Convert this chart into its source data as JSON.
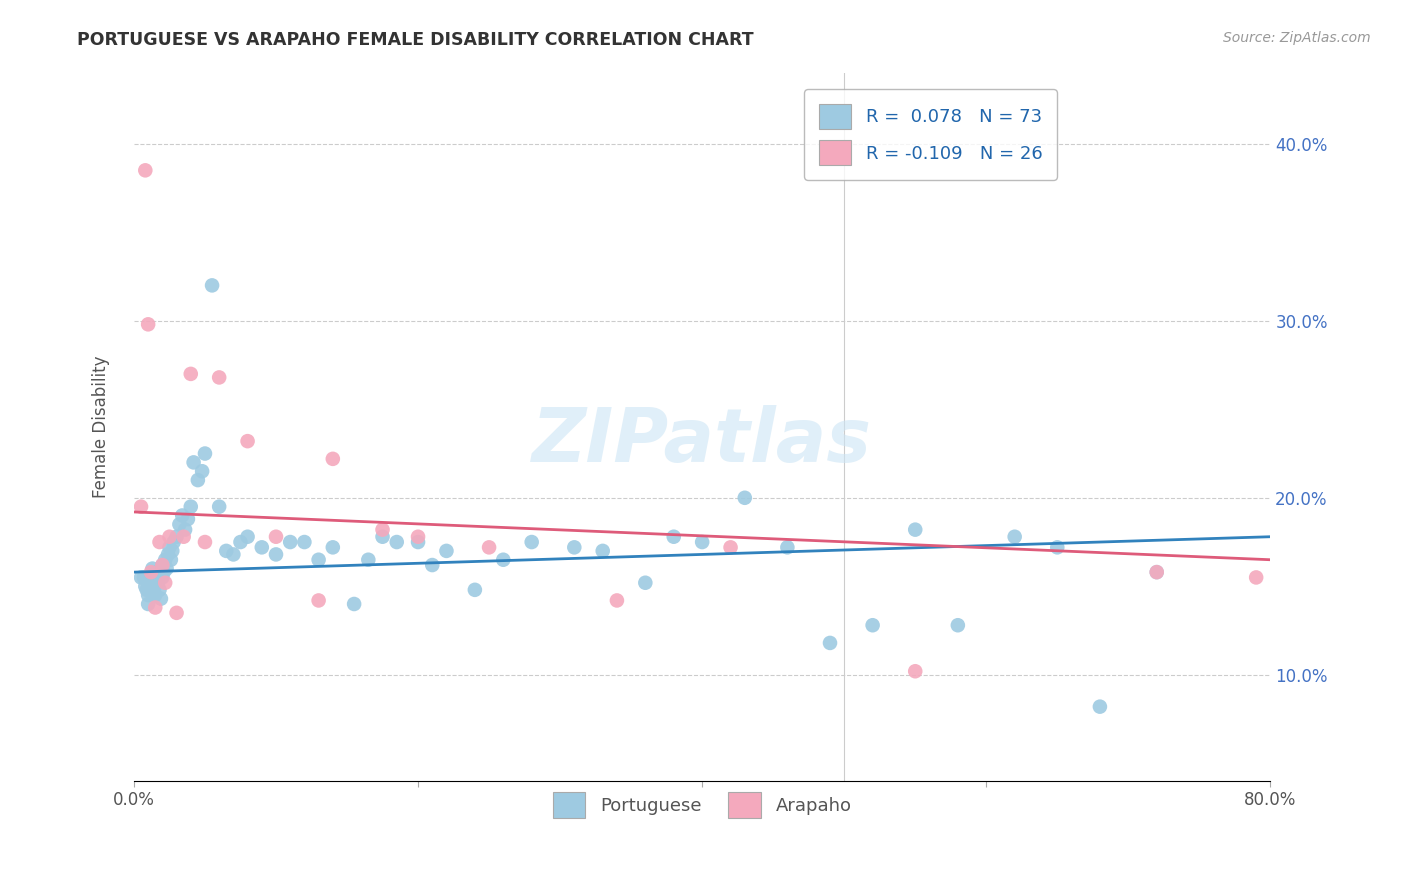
{
  "title": "PORTUGUESE VS ARAPAHO FEMALE DISABILITY CORRELATION CHART",
  "source": "Source: ZipAtlas.com",
  "xlabel": "",
  "ylabel": "Female Disability",
  "xlim": [
    0.0,
    0.8
  ],
  "ylim": [
    0.04,
    0.44
  ],
  "xtick_labels": [
    "0.0%",
    "",
    "",
    "",
    "80.0%"
  ],
  "xtick_vals": [
    0.0,
    0.2,
    0.4,
    0.6,
    0.8
  ],
  "ytick_labels": [
    "10.0%",
    "20.0%",
    "30.0%",
    "40.0%"
  ],
  "ytick_vals": [
    0.1,
    0.2,
    0.3,
    0.4
  ],
  "legend_r_portuguese": "R =  0.078",
  "legend_n_portuguese": "N = 73",
  "legend_r_arapaho": "R = -0.109",
  "legend_n_arapaho": "N = 26",
  "portuguese_color": "#9ecae1",
  "arapaho_color": "#f4a9bd",
  "trendline_portuguese_color": "#3182bd",
  "trendline_arapaho_color": "#de5b7a",
  "trendline_portuguese_start": 0.158,
  "trendline_portuguese_end": 0.178,
  "trendline_arapaho_start": 0.192,
  "trendline_arapaho_end": 0.165,
  "watermark": "ZIPatlas",
  "portuguese_x": [
    0.005,
    0.007,
    0.008,
    0.009,
    0.01,
    0.01,
    0.01,
    0.012,
    0.013,
    0.014,
    0.015,
    0.015,
    0.016,
    0.017,
    0.018,
    0.019,
    0.02,
    0.02,
    0.021,
    0.022,
    0.023,
    0.024,
    0.025,
    0.026,
    0.027,
    0.028,
    0.03,
    0.032,
    0.034,
    0.036,
    0.038,
    0.04,
    0.042,
    0.045,
    0.048,
    0.05,
    0.055,
    0.06,
    0.065,
    0.07,
    0.075,
    0.08,
    0.09,
    0.1,
    0.11,
    0.12,
    0.13,
    0.14,
    0.155,
    0.165,
    0.175,
    0.185,
    0.2,
    0.21,
    0.22,
    0.24,
    0.26,
    0.28,
    0.31,
    0.33,
    0.36,
    0.38,
    0.4,
    0.43,
    0.46,
    0.49,
    0.52,
    0.55,
    0.58,
    0.62,
    0.65,
    0.68,
    0.72
  ],
  "portuguese_y": [
    0.155,
    0.155,
    0.15,
    0.148,
    0.152,
    0.145,
    0.14,
    0.155,
    0.16,
    0.148,
    0.153,
    0.145,
    0.158,
    0.152,
    0.148,
    0.143,
    0.162,
    0.155,
    0.158,
    0.165,
    0.16,
    0.168,
    0.172,
    0.165,
    0.17,
    0.175,
    0.178,
    0.185,
    0.19,
    0.182,
    0.188,
    0.195,
    0.22,
    0.21,
    0.215,
    0.225,
    0.32,
    0.195,
    0.17,
    0.168,
    0.175,
    0.178,
    0.172,
    0.168,
    0.175,
    0.175,
    0.165,
    0.172,
    0.14,
    0.165,
    0.178,
    0.175,
    0.175,
    0.162,
    0.17,
    0.148,
    0.165,
    0.175,
    0.172,
    0.17,
    0.152,
    0.178,
    0.175,
    0.2,
    0.172,
    0.118,
    0.128,
    0.182,
    0.128,
    0.178,
    0.172,
    0.082,
    0.158
  ],
  "arapaho_x": [
    0.005,
    0.008,
    0.01,
    0.012,
    0.015,
    0.018,
    0.02,
    0.022,
    0.025,
    0.03,
    0.035,
    0.04,
    0.05,
    0.06,
    0.08,
    0.1,
    0.13,
    0.14,
    0.175,
    0.2,
    0.25,
    0.34,
    0.42,
    0.55,
    0.72,
    0.79
  ],
  "arapaho_y": [
    0.195,
    0.385,
    0.298,
    0.158,
    0.138,
    0.175,
    0.162,
    0.152,
    0.178,
    0.135,
    0.178,
    0.27,
    0.175,
    0.268,
    0.232,
    0.178,
    0.142,
    0.222,
    0.182,
    0.178,
    0.172,
    0.142,
    0.172,
    0.102,
    0.158,
    0.155
  ]
}
